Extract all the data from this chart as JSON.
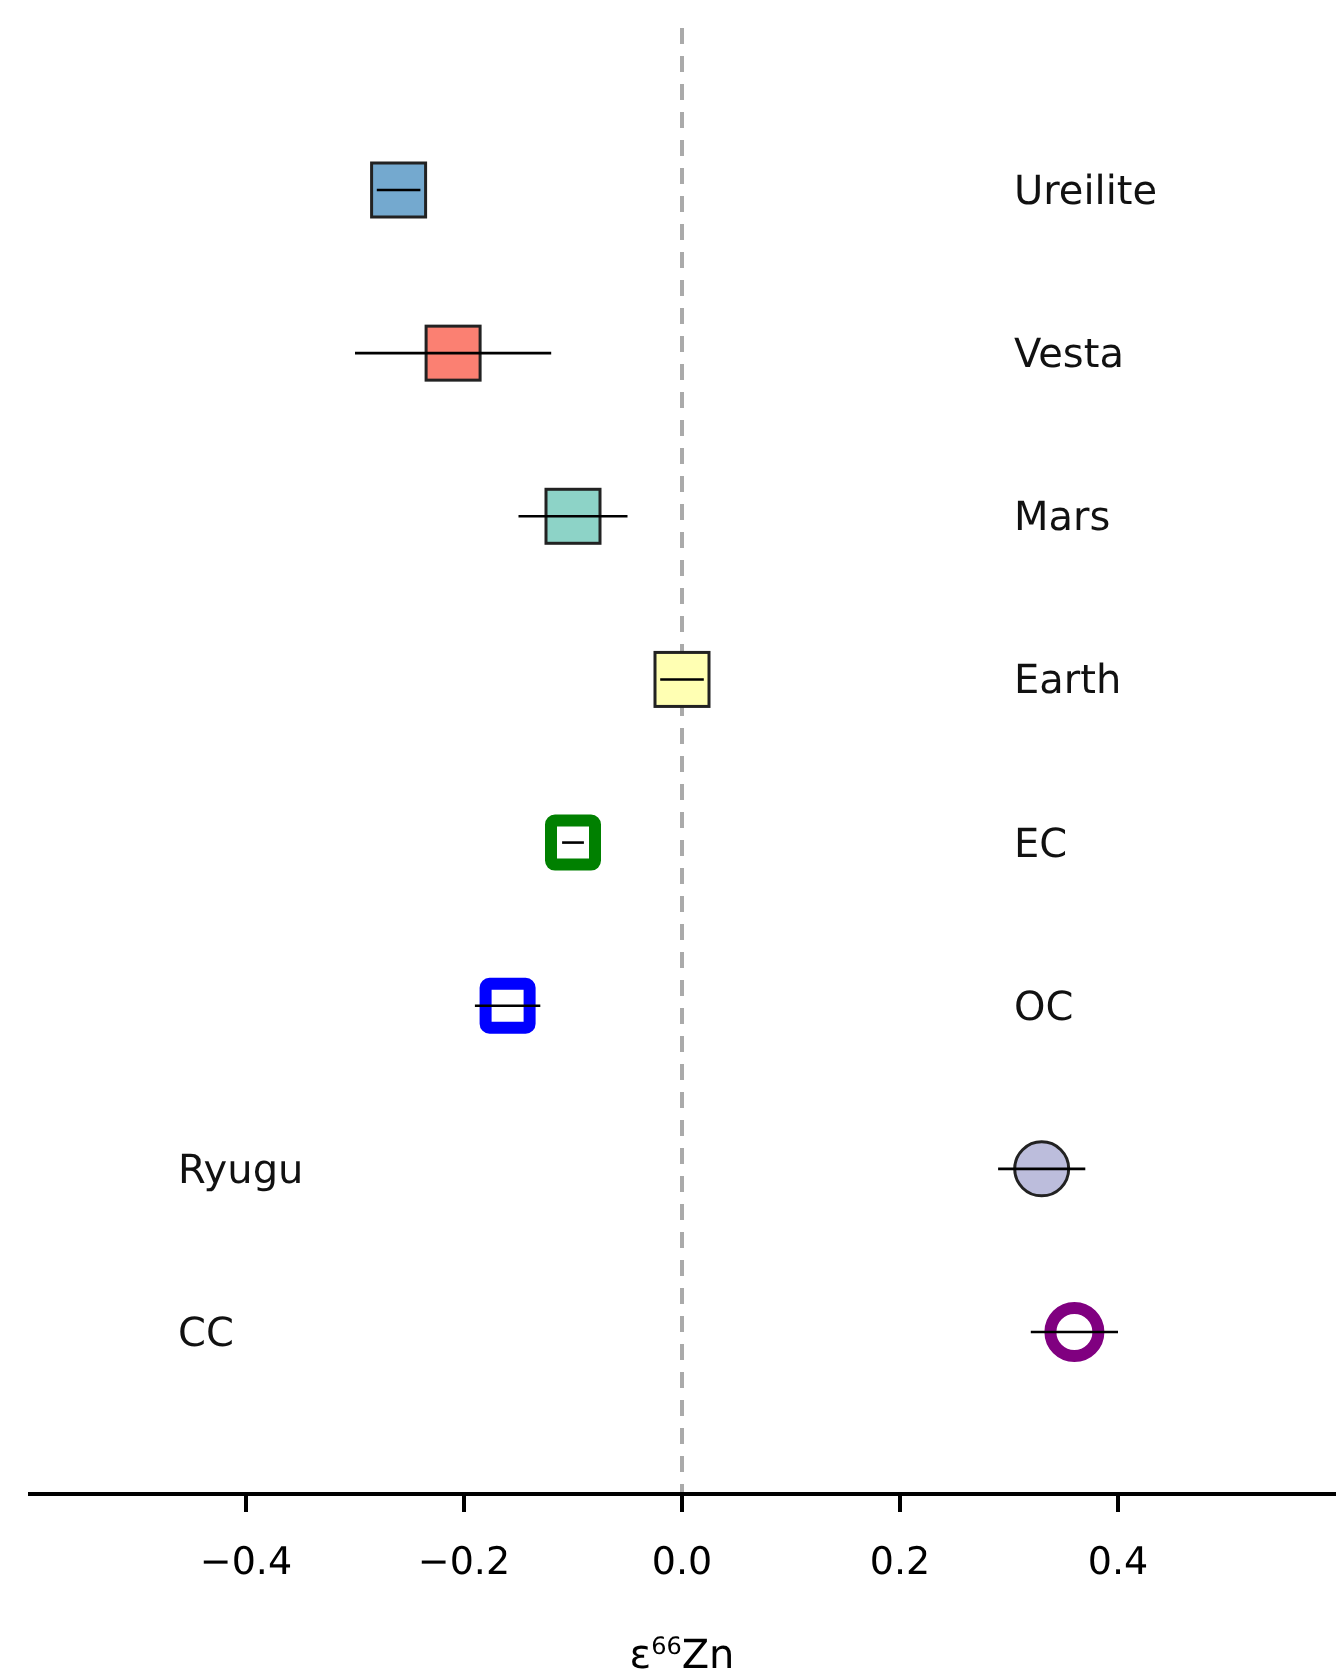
{
  "chart_data": {
    "type": "scatter",
    "orientation": "horizontal",
    "xlabel": "ε$^{66}$Zn",
    "categories": [
      "Ureilite",
      "Vesta",
      "Mars",
      "Earth",
      "EC",
      "OC",
      "Ryugu",
      "CC"
    ],
    "series": [
      {
        "marker": "square",
        "colors": [
          "#74a9cf",
          "#fb8072",
          "#8dd3c7",
          "#ffffb3",
          null,
          null,
          null,
          null
        ],
        "values": [
          -0.26,
          -0.21,
          -0.1,
          0.0,
          null,
          null,
          null,
          null
        ],
        "errors": [
          0.02,
          0.09,
          0.05,
          0.02,
          null,
          null,
          null,
          null
        ]
      },
      {
        "marker": "square",
        "color": "#008000",
        "values": [
          null,
          null,
          null,
          null,
          -0.1,
          null,
          null,
          null
        ],
        "errors": [
          null,
          null,
          null,
          null,
          0.01,
          null,
          null,
          null
        ]
      },
      {
        "marker": "square",
        "color": "#0000ff",
        "values": [
          null,
          null,
          null,
          null,
          null,
          -0.16,
          null,
          null
        ],
        "errors": [
          null,
          null,
          null,
          null,
          null,
          0.03,
          null,
          null
        ]
      },
      {
        "marker": "circle",
        "colors": [
          null,
          null,
          null,
          null,
          null,
          null,
          "#bcbddc",
          null
        ],
        "values": [
          null,
          null,
          null,
          null,
          null,
          null,
          0.33,
          null
        ],
        "errors": [
          null,
          null,
          null,
          null,
          null,
          null,
          0.04,
          null
        ]
      },
      {
        "marker": "circle",
        "color": "#800080",
        "values": [
          null,
          null,
          null,
          null,
          null,
          null,
          null,
          0.36
        ],
        "errors": [
          null,
          null,
          null,
          null,
          null,
          null,
          null,
          0.04
        ]
      }
    ],
    "xlim": [
      -0.6,
      0.6
    ],
    "xticks": [
      {
        "value": -0.4,
        "label": "−0.4"
      },
      {
        "value": -0.2,
        "label": "−0.2"
      },
      {
        "value": 0,
        "label": "0.0"
      },
      0.2,
      0.4
    ],
    "ref_lines": [
      {
        "axis": "x",
        "value": 0,
        "color": "#aaaaaa",
        "line_style": "dashed"
      }
    ],
    "grid": false
  }
}
